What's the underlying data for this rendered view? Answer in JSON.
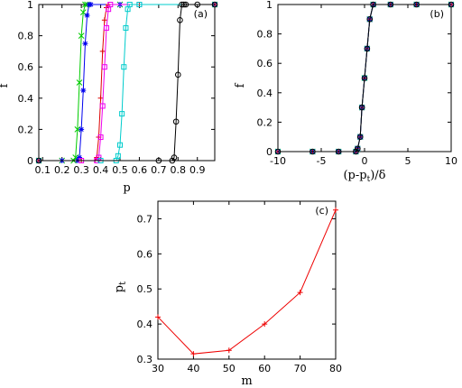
{
  "chart_data": [
    {
      "panel_label": "(a)",
      "type": "line",
      "xlabel": "p",
      "ylabel": "f",
      "xlim": [
        0.08,
        0.99
      ],
      "ylim": [
        0,
        1
      ],
      "xticks": [
        0.1,
        0.2,
        0.3,
        0.4,
        0.5,
        0.6,
        0.7,
        0.8,
        0.9
      ],
      "yticks": [
        0,
        0.2,
        0.4,
        0.6,
        0.8,
        1
      ],
      "grid": false,
      "series": [
        {
          "color": "#00cc00",
          "marker": "x",
          "x": [
            0.08,
            0.2,
            0.26,
            0.27,
            0.28,
            0.29,
            0.3,
            0.31,
            0.32,
            0.33,
            0.5,
            0.99
          ],
          "y": [
            0,
            0,
            0,
            0.02,
            0.2,
            0.5,
            0.8,
            0.95,
            1,
            1,
            1,
            1
          ]
        },
        {
          "color": "#0000ee",
          "marker": "*",
          "x": [
            0.08,
            0.2,
            0.28,
            0.29,
            0.3,
            0.31,
            0.32,
            0.33,
            0.34,
            0.35,
            0.5,
            0.99
          ],
          "y": [
            0,
            0,
            0,
            0.02,
            0.2,
            0.45,
            0.75,
            0.93,
            1,
            1,
            1,
            1
          ]
        },
        {
          "color": "#dd0000",
          "marker": "+",
          "x": [
            0.08,
            0.3,
            0.37,
            0.38,
            0.39,
            0.4,
            0.41,
            0.42,
            0.43,
            0.44,
            0.6,
            0.99
          ],
          "y": [
            0,
            0,
            0,
            0.02,
            0.15,
            0.4,
            0.7,
            0.9,
            0.98,
            1,
            1,
            1
          ]
        },
        {
          "color": "#ee00ee",
          "marker": "s",
          "x": [
            0.08,
            0.3,
            0.38,
            0.39,
            0.4,
            0.41,
            0.42,
            0.43,
            0.44,
            0.45,
            0.6,
            0.99
          ],
          "y": [
            0,
            0,
            0,
            0.02,
            0.15,
            0.35,
            0.6,
            0.85,
            0.97,
            1,
            1,
            1
          ]
        },
        {
          "color": "#00cccc",
          "marker": "s",
          "x": [
            0.08,
            0.4,
            0.48,
            0.49,
            0.5,
            0.51,
            0.52,
            0.53,
            0.54,
            0.55,
            0.6,
            0.99
          ],
          "y": [
            0,
            0,
            0,
            0.03,
            0.1,
            0.3,
            0.6,
            0.85,
            0.97,
            1,
            1,
            1
          ]
        },
        {
          "color": "#000000",
          "marker": "o",
          "x": [
            0.08,
            0.7,
            0.77,
            0.78,
            0.79,
            0.8,
            0.81,
            0.82,
            0.83,
            0.84,
            0.9,
            0.99
          ],
          "y": [
            0,
            0,
            0,
            0.02,
            0.25,
            0.55,
            0.9,
            1,
            1,
            1,
            1,
            1
          ]
        }
      ]
    },
    {
      "panel_label": "(b)",
      "type": "line",
      "xlabel": "(p-pt)/δ",
      "ylabel": "f",
      "xlim": [
        -10,
        10
      ],
      "ylim": [
        0,
        1
      ],
      "xticks": [
        -10,
        -5,
        0,
        5,
        10
      ],
      "yticks": [
        0,
        0.2,
        0.4,
        0.6,
        0.8,
        1
      ],
      "grid": false,
      "series": [
        {
          "color": "#00cc00",
          "marker": "x",
          "x": [
            -10,
            -6,
            -3,
            -1,
            -0.8,
            -0.5,
            -0.3,
            0,
            0.3,
            0.6,
            1,
            3,
            6,
            10
          ],
          "y": [
            0,
            0,
            0,
            0,
            0.02,
            0.1,
            0.3,
            0.5,
            0.7,
            0.9,
            1,
            1,
            1,
            1
          ]
        },
        {
          "color": "#0000ee",
          "marker": "*",
          "x": [
            -10,
            -6,
            -3,
            -1,
            -0.8,
            -0.5,
            -0.3,
            0,
            0.3,
            0.6,
            1,
            3,
            6,
            10
          ],
          "y": [
            0,
            0,
            0,
            0,
            0.02,
            0.1,
            0.3,
            0.5,
            0.7,
            0.9,
            1,
            1,
            1,
            1
          ]
        },
        {
          "color": "#dd0000",
          "marker": "+",
          "x": [
            -10,
            -6,
            -3,
            -1,
            -0.8,
            -0.5,
            -0.3,
            0,
            0.3,
            0.6,
            1,
            3,
            6,
            10
          ],
          "y": [
            0,
            0,
            0,
            0,
            0.02,
            0.1,
            0.3,
            0.5,
            0.7,
            0.9,
            1,
            1,
            1,
            1
          ]
        },
        {
          "color": "#ee00ee",
          "marker": "s",
          "x": [
            -10,
            -6,
            -3,
            -1,
            -0.8,
            -0.5,
            -0.3,
            0,
            0.3,
            0.6,
            1,
            3,
            6,
            10
          ],
          "y": [
            0,
            0,
            0,
            0,
            0.02,
            0.1,
            0.3,
            0.5,
            0.7,
            0.9,
            1,
            1,
            1,
            1
          ]
        },
        {
          "color": "#00cccc",
          "marker": "s",
          "x": [
            -10,
            -6,
            -3,
            -1,
            -0.8,
            -0.5,
            -0.3,
            0,
            0.3,
            0.6,
            1,
            3,
            6,
            10
          ],
          "y": [
            0,
            0,
            0,
            0,
            0.02,
            0.1,
            0.3,
            0.5,
            0.7,
            0.9,
            1,
            1,
            1,
            1
          ]
        },
        {
          "color": "#000000",
          "marker": "o",
          "x": [
            -10,
            -6,
            -3,
            -1,
            -0.8,
            -0.5,
            -0.3,
            0,
            0.3,
            0.6,
            1,
            3,
            6,
            10
          ],
          "y": [
            0,
            0,
            0,
            0,
            0.02,
            0.1,
            0.3,
            0.5,
            0.7,
            0.9,
            1,
            1,
            1,
            1
          ]
        }
      ]
    },
    {
      "panel_label": "(c)",
      "type": "line",
      "xlabel": "m",
      "ylabel": "pt",
      "xlim": [
        30,
        80
      ],
      "ylim": [
        0.3,
        0.75
      ],
      "xticks": [
        30,
        40,
        50,
        60,
        70,
        80
      ],
      "yticks": [
        0.3,
        0.4,
        0.5,
        0.6,
        0.7
      ],
      "grid": false,
      "series": [
        {
          "color": "#ee0000",
          "marker": "+",
          "x": [
            30,
            40,
            50,
            60,
            70,
            80
          ],
          "y": [
            0.42,
            0.315,
            0.325,
            0.4,
            0.49,
            0.725
          ]
        }
      ]
    }
  ]
}
